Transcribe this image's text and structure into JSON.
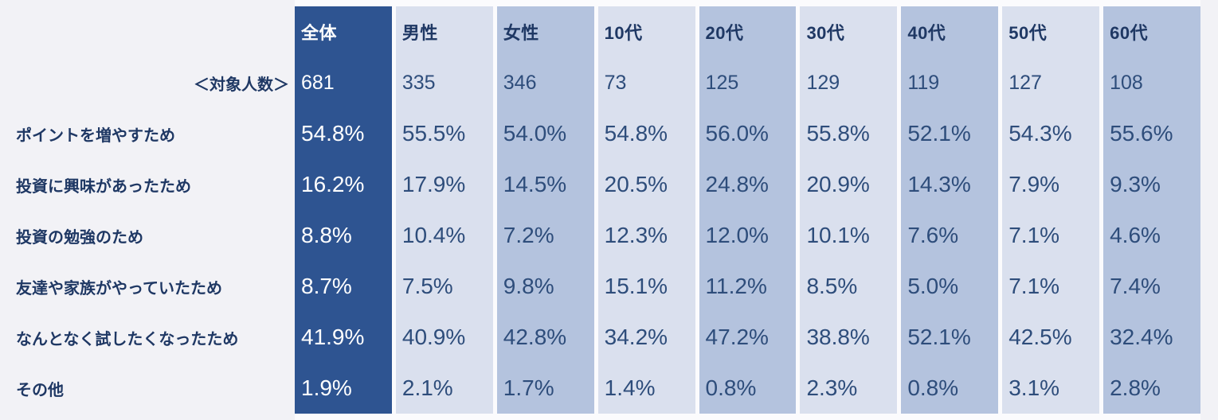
{
  "page": {
    "background_color": "#f2f2f6",
    "table_backing_color": "#fbfbfd"
  },
  "colors": {
    "total_column": "#2e5491",
    "light_column": "#dae0ee",
    "medium_column": "#b4c3de",
    "header_text": "#1f3864",
    "value_text": "#2e4d7b",
    "total_column_text": "#ffffff"
  },
  "chart_data": {
    "type": "table",
    "columns": [
      "全体",
      "男性",
      "女性",
      "10代",
      "20代",
      "30代",
      "40代",
      "50代",
      "60代"
    ],
    "sample_size_label": "＜対象人数＞",
    "sample_sizes": [
      "681",
      "335",
      "346",
      "73",
      "125",
      "129",
      "119",
      "127",
      "108"
    ],
    "rows": [
      {
        "label": "ポイントを増やすため",
        "values": [
          "54.8%",
          "55.5%",
          "54.0%",
          "54.8%",
          "56.0%",
          "55.8%",
          "52.1%",
          "54.3%",
          "55.6%"
        ]
      },
      {
        "label": "投資に興味があったため",
        "values": [
          "16.2%",
          "17.9%",
          "14.5%",
          "20.5%",
          "24.8%",
          "20.9%",
          "14.3%",
          "7.9%",
          "9.3%"
        ]
      },
      {
        "label": "投資の勉強のため",
        "values": [
          "8.8%",
          "10.4%",
          "7.2%",
          "12.3%",
          "12.0%",
          "10.1%",
          "7.6%",
          "7.1%",
          "4.6%"
        ]
      },
      {
        "label": "友達や家族がやっていたため",
        "values": [
          "8.7%",
          "7.5%",
          "9.8%",
          "15.1%",
          "11.2%",
          "8.5%",
          "5.0%",
          "7.1%",
          "7.4%"
        ]
      },
      {
        "label": "なんとなく試したくなったため",
        "values": [
          "41.9%",
          "40.9%",
          "42.8%",
          "34.2%",
          "47.2%",
          "38.8%",
          "52.1%",
          "42.5%",
          "32.4%"
        ]
      },
      {
        "label": "その他",
        "values": [
          "1.9%",
          "2.1%",
          "1.7%",
          "1.4%",
          "0.8%",
          "2.3%",
          "0.8%",
          "3.1%",
          "2.8%"
        ]
      }
    ]
  }
}
